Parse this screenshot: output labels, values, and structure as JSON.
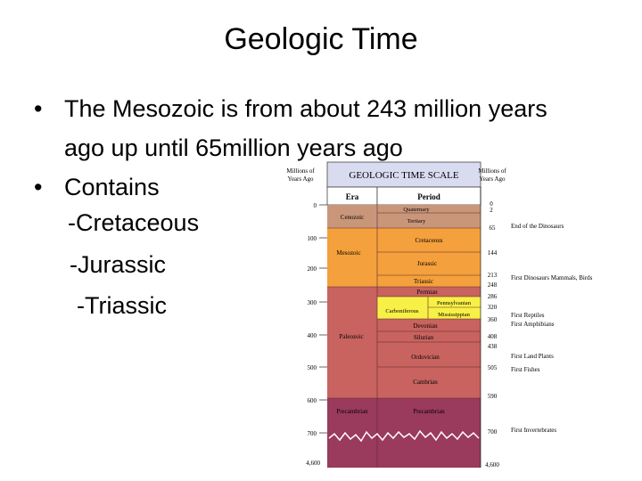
{
  "slide": {
    "title": "Geologic Time",
    "bullets": [
      "The Mesozoic  is from about 243 million years ago up until 65million years ago",
      "Contains"
    ],
    "bullet_line1": "The Mesozoic  is from about 243 million years",
    "bullet_line2": "ago up until 65million years ago",
    "subitems": [
      "-Cretaceous",
      "-Jurassic",
      "-Triassic"
    ]
  },
  "figure": {
    "title": "GEOLOGIC TIME SCALE",
    "left_axis_title": [
      "Millions of",
      "Years Ago"
    ],
    "right_axis_title": [
      "Millions of",
      "Years Ago"
    ],
    "col_era": "Era",
    "col_period": "Period",
    "left_ticks": [
      "0",
      "100",
      "200",
      "300",
      "400",
      "500",
      "600",
      "700",
      "4,600"
    ],
    "eras": [
      {
        "name": "Cenozoic",
        "color": "#c9967a"
      },
      {
        "name": "Mesozoic",
        "color": "#f4a03c"
      },
      {
        "name": "Paleozoic",
        "color": "#c8635f"
      },
      {
        "name": "Precambrian",
        "color": "#9a3a5c"
      }
    ],
    "periods": [
      {
        "name": "Quaternary",
        "color": "#c9967a"
      },
      {
        "name": "Tertiary",
        "color": "#c9967a"
      },
      {
        "name": "Cretaceous",
        "color": "#f4a03c"
      },
      {
        "name": "Jurassic",
        "color": "#f4a03c"
      },
      {
        "name": "Triassic",
        "color": "#f4a03c"
      },
      {
        "name": "Permian",
        "color": "#c8635f"
      },
      {
        "name": "Carboniferous",
        "color": "#f7f046"
      },
      {
        "name": "Pennsylvanian",
        "color": "#f7f046"
      },
      {
        "name": "Mississippian",
        "color": "#f7f046"
      },
      {
        "name": "Devonian",
        "color": "#c8635f"
      },
      {
        "name": "Silurian",
        "color": "#c8635f"
      },
      {
        "name": "Ordovician",
        "color": "#c8635f"
      },
      {
        "name": "Cambrian",
        "color": "#c8635f"
      },
      {
        "name": "Precambrian",
        "color": "#9a3a5c"
      }
    ],
    "right_ticks": [
      "0",
      "2",
      "65",
      "144",
      "213",
      "248",
      "286",
      "320",
      "360",
      "408",
      "438",
      "505",
      "590",
      "700",
      "4,600"
    ],
    "events": [
      "End of the Dinosaurs",
      "First Dinosaurs  Mammals, Birds",
      "First Reptiles",
      "First Amphibians",
      "First Land Plants",
      "First Fishes",
      "First Invertebrates"
    ]
  }
}
